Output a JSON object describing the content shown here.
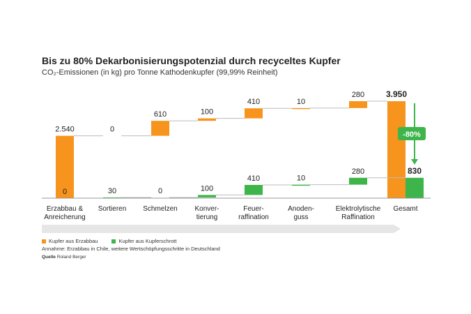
{
  "title": "Bis zu 80% Dekarbonisierungspotenzial durch recyceltes Kupfer",
  "subtitle": "CO₂-Emissionen (in kg) pro Tonne Kathodenkupfer (99,99% Reinheit)",
  "note": "Annahme: Erzabbau in Chile, weitere Wertschöpfungsschritte in Deutschland",
  "source_label": "Quelle",
  "source_value": "Roland Berger",
  "colors": {
    "mine": "#F7941D",
    "scrap": "#3DB54A",
    "connector": "#bbbbbb",
    "arrow": "#e6e6e6"
  },
  "chart_data": {
    "type": "bar",
    "subtype": "waterfall",
    "categories": [
      [
        "Erzabbau &",
        "Anreicherung"
      ],
      [
        "Sortieren"
      ],
      [
        "Schmelzen"
      ],
      [
        "Konver-",
        "tierung"
      ],
      [
        "Feuer-",
        "raffination"
      ],
      [
        "Anoden-",
        "guss"
      ],
      [
        "Elektrolytische",
        "Raffination"
      ],
      [
        "Gesamt"
      ]
    ],
    "series": [
      {
        "name": "Kupfer aus Erzabbau",
        "values": [
          2540,
          0,
          610,
          100,
          410,
          10,
          280,
          3950
        ],
        "labels": [
          "2.540",
          "0",
          "610",
          "100",
          "410",
          "10",
          "280",
          "3.950"
        ]
      },
      {
        "name": "Kupfer aus Kupferschrott",
        "values": [
          0,
          30,
          0,
          100,
          410,
          10,
          280,
          830
        ],
        "labels": [
          "0",
          "30",
          "0",
          "100",
          "410",
          "10",
          "280",
          "830"
        ]
      }
    ],
    "reduction_label": "-80%",
    "ylim": [
      0,
      3950
    ]
  }
}
